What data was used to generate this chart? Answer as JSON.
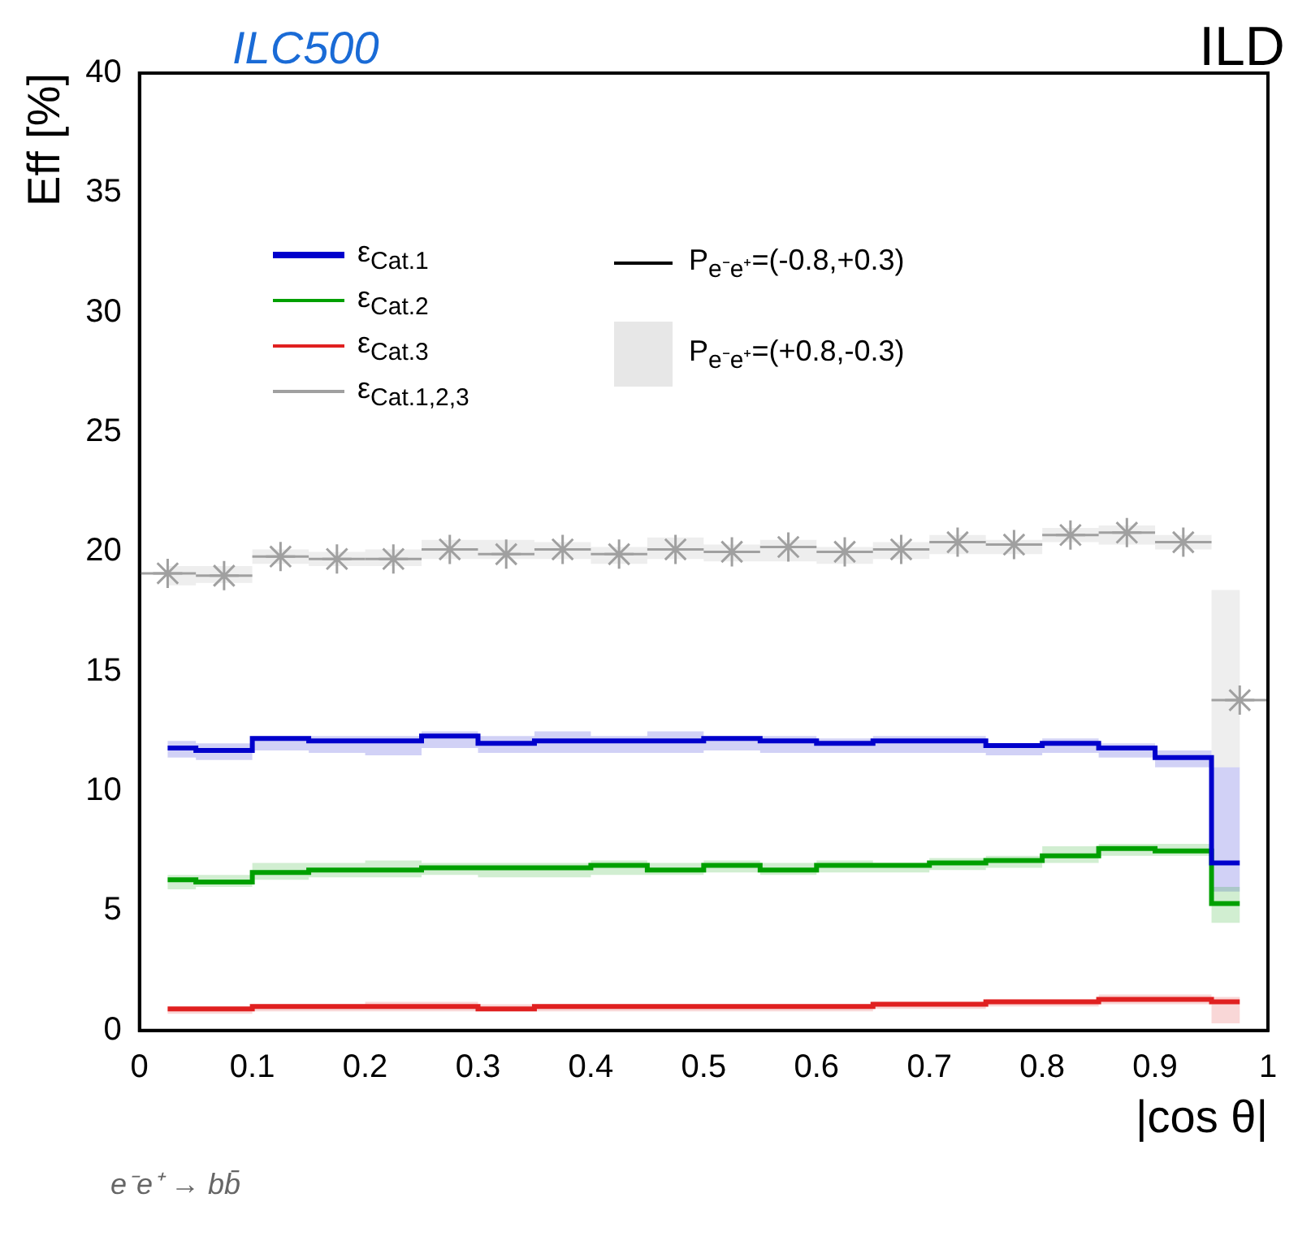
{
  "chart_data": {
    "type": "step",
    "title": "ILD",
    "subtitle": "ILC500",
    "xlabel": "|cos θ|",
    "ylabel": "Eff [%]",
    "annotations": [
      "P$_{e⁻e⁺}$=(-0.8,+0.3)",
      "P$_{e⁻e⁺}$=(+0.8,-0.3)",
      "e⁻e⁺ → bb̄"
    ],
    "x": [
      0.025,
      0.075,
      0.125,
      0.175,
      0.225,
      0.275,
      0.325,
      0.375,
      0.425,
      0.475,
      0.525,
      0.575,
      0.625,
      0.675,
      0.725,
      0.775,
      0.825,
      0.875,
      0.925,
      0.975
    ],
    "xlim": [
      0,
      1
    ],
    "xticks": [
      0,
      0.1,
      0.2,
      0.3,
      0.4,
      0.5,
      0.6,
      0.7,
      0.8,
      0.9,
      1
    ],
    "ylim": [
      0,
      40
    ],
    "yticks": [
      0,
      5,
      10,
      15,
      20,
      25,
      30,
      35,
      40
    ],
    "grid": false,
    "legend": "top left",
    "series": [
      {
        "name": "ε$_{Cat.1}$",
        "color": "#0000cc",
        "values": [
          11.8,
          11.7,
          12.2,
          12.1,
          12.1,
          12.3,
          12.0,
          12.1,
          12.1,
          12.1,
          12.2,
          12.1,
          12.0,
          12.1,
          12.1,
          11.9,
          12.0,
          11.8,
          11.4,
          7.0
        ],
        "lower": [
          11.4,
          11.3,
          11.7,
          11.6,
          11.5,
          11.8,
          11.6,
          11.6,
          11.6,
          11.6,
          11.7,
          11.6,
          11.6,
          11.6,
          11.6,
          11.5,
          11.6,
          11.4,
          11.0,
          5.8
        ],
        "upper": [
          12.1,
          12.0,
          12.3,
          12.3,
          12.3,
          12.5,
          12.3,
          12.5,
          12.3,
          12.5,
          12.3,
          12.3,
          12.2,
          12.3,
          12.3,
          12.0,
          12.2,
          12.0,
          11.7,
          11.0
        ]
      },
      {
        "name": "ε$_{Cat.2}$",
        "color": "#00a000",
        "values": [
          6.3,
          6.2,
          6.6,
          6.7,
          6.7,
          6.8,
          6.8,
          6.8,
          6.9,
          6.7,
          6.9,
          6.7,
          6.9,
          6.9,
          7.0,
          7.1,
          7.3,
          7.6,
          7.5,
          5.3
        ],
        "lower": [
          5.9,
          6.0,
          6.3,
          6.4,
          6.4,
          6.5,
          6.4,
          6.4,
          6.5,
          6.5,
          6.6,
          6.5,
          6.6,
          6.6,
          6.7,
          6.8,
          7.0,
          7.3,
          7.3,
          4.5
        ],
        "upper": [
          6.5,
          6.5,
          7.0,
          7.0,
          7.1,
          7.0,
          7.0,
          7.0,
          7.1,
          7.0,
          7.1,
          7.0,
          7.1,
          7.0,
          7.2,
          7.3,
          7.7,
          7.8,
          7.8,
          6.0
        ]
      },
      {
        "name": "ε$_{Cat.3}$",
        "color": "#e02020",
        "values": [
          0.9,
          0.9,
          1.0,
          1.0,
          1.0,
          1.0,
          0.9,
          1.0,
          1.0,
          1.0,
          1.0,
          1.0,
          1.0,
          1.1,
          1.1,
          1.2,
          1.2,
          1.3,
          1.3,
          1.2
        ],
        "lower": [
          0.7,
          0.7,
          0.8,
          0.8,
          0.8,
          0.8,
          0.8,
          0.8,
          0.8,
          0.8,
          0.8,
          0.8,
          0.8,
          0.9,
          0.9,
          1.0,
          1.0,
          1.1,
          1.1,
          0.3
        ],
        "upper": [
          1.0,
          1.0,
          1.1,
          1.1,
          1.2,
          1.2,
          1.1,
          1.1,
          1.1,
          1.1,
          1.1,
          1.1,
          1.1,
          1.2,
          1.2,
          1.3,
          1.3,
          1.5,
          1.5,
          1.4
        ]
      },
      {
        "name": "ε$_{Cat.1,2,3}$",
        "type": "scatter",
        "marker": "cross",
        "color": "#a0a0a0",
        "values": [
          19.1,
          19.0,
          19.8,
          19.7,
          19.7,
          20.1,
          19.9,
          20.1,
          19.9,
          20.1,
          20.0,
          20.2,
          20.0,
          20.1,
          20.4,
          20.3,
          20.7,
          20.8,
          20.4,
          13.8
        ],
        "xerrors": [
          0.025,
          0.025,
          0.025,
          0.025,
          0.025,
          0.025,
          0.025,
          0.025,
          0.025,
          0.025,
          0.025,
          0.025,
          0.025,
          0.025,
          0.025,
          0.025,
          0.025,
          0.025,
          0.025,
          0.025
        ],
        "lower": [
          18.6,
          18.7,
          19.5,
          19.4,
          19.4,
          19.7,
          19.7,
          19.7,
          19.5,
          19.7,
          19.6,
          19.6,
          19.5,
          19.7,
          19.9,
          19.9,
          20.4,
          20.3,
          20.1,
          11.0
        ],
        "upper": [
          19.4,
          19.4,
          20.1,
          20.0,
          20.1,
          20.5,
          20.5,
          20.4,
          20.2,
          20.6,
          20.3,
          20.5,
          20.2,
          20.4,
          20.7,
          20.5,
          21.0,
          21.1,
          20.7,
          18.4
        ]
      }
    ]
  }
}
